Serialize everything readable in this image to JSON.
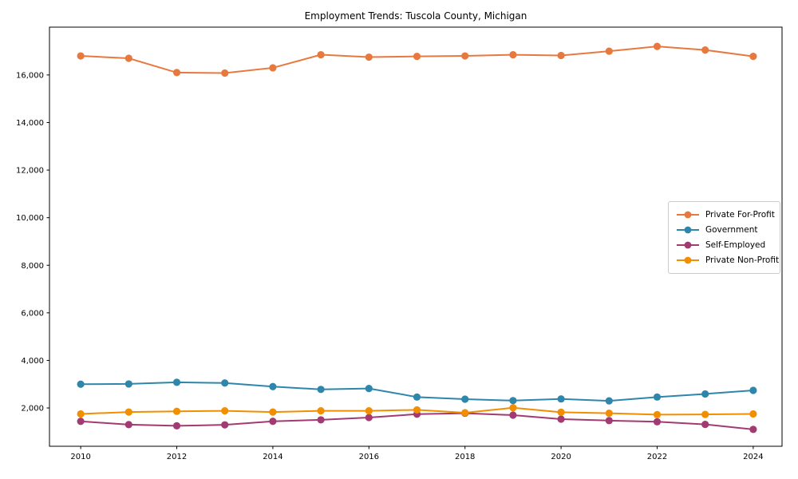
{
  "page": {
    "title": "Employment Trends: Tuscola County, Michigan"
  },
  "chart_data": {
    "type": "line",
    "title": "Employment Trends: Tuscola County, Michigan",
    "xlabel": "",
    "ylabel": "",
    "x": [
      2010,
      2011,
      2012,
      2013,
      2014,
      2015,
      2016,
      2017,
      2018,
      2019,
      2020,
      2021,
      2022,
      2023,
      2024
    ],
    "series": [
      {
        "name": "Private For-Profit",
        "color": "#E8793E",
        "values": [
          16800,
          16700,
          16100,
          16080,
          16300,
          16850,
          16750,
          16780,
          16800,
          16850,
          16820,
          17000,
          17200,
          17050,
          16780
        ]
      },
      {
        "name": "Government",
        "color": "#2E86AB",
        "values": [
          3000,
          3010,
          3080,
          3050,
          2900,
          2780,
          2820,
          2460,
          2370,
          2310,
          2380,
          2300,
          2460,
          2590,
          2740
        ]
      },
      {
        "name": "Self-Employed",
        "color": "#A23B72",
        "values": [
          1440,
          1300,
          1250,
          1290,
          1440,
          1500,
          1600,
          1740,
          1780,
          1700,
          1530,
          1470,
          1420,
          1310,
          1100
        ]
      },
      {
        "name": "Private Non-Profit",
        "color": "#F18F01",
        "values": [
          1750,
          1830,
          1860,
          1880,
          1830,
          1880,
          1880,
          1920,
          1800,
          2010,
          1820,
          1780,
          1720,
          1730,
          1750
        ]
      }
    ],
    "x_ticks": {
      "values": [
        2010,
        2012,
        2014,
        2016,
        2018,
        2020,
        2022,
        2024
      ],
      "labels": [
        "2010",
        "2012",
        "2014",
        "2016",
        "2018",
        "2020",
        "2022",
        "2024"
      ]
    },
    "y_ticks": {
      "values": [
        2000,
        4000,
        6000,
        8000,
        10000,
        12000,
        14000,
        16000
      ],
      "labels": [
        "2,000",
        "4,000",
        "6,000",
        "8,000",
        "10,000",
        "12,000",
        "14,000",
        "16,000"
      ]
    },
    "x_range": [
      2009.35,
      2024.6
    ],
    "y_range": [
      390,
      18010
    ],
    "grid": false,
    "marker": "circle",
    "legend_position": "center-right",
    "axis_color": "#000000"
  }
}
